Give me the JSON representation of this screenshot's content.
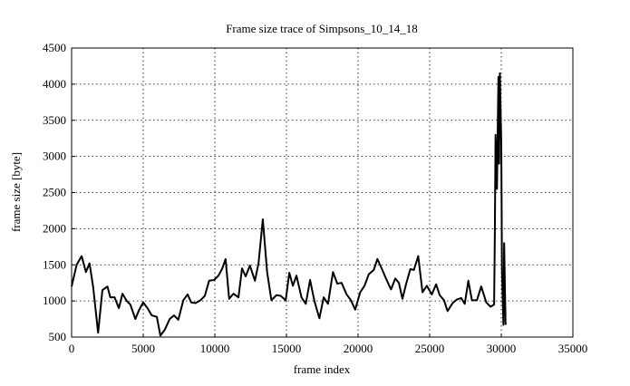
{
  "chart_data": {
    "type": "line",
    "title": "Frame size trace of Simpsons_10_14_18",
    "xlabel": "frame index",
    "ylabel": "frame size [byte]",
    "xlim": [
      0,
      35000
    ],
    "xticks": [
      0,
      5000,
      10000,
      15000,
      20000,
      25000,
      30000,
      35000
    ],
    "ylim": [
      500,
      4500
    ],
    "yticks": [
      500,
      1000,
      1500,
      2000,
      2500,
      3000,
      3500,
      4000,
      4500
    ],
    "grid": true,
    "series": [
      {
        "color": "#000000",
        "x": [
          0,
          350,
          700,
          1000,
          1250,
          1500,
          1850,
          2150,
          2500,
          2700,
          3000,
          3300,
          3550,
          3850,
          4100,
          4450,
          4700,
          5000,
          5300,
          5600,
          5950,
          6200,
          6500,
          6850,
          7150,
          7450,
          7800,
          8100,
          8350,
          8650,
          9000,
          9300,
          9600,
          9950,
          10250,
          10500,
          10750,
          11000,
          11300,
          11650,
          11900,
          12150,
          12450,
          12800,
          13050,
          13350,
          13650,
          13950,
          14300,
          14600,
          14950,
          15200,
          15450,
          15700,
          16050,
          16350,
          16650,
          16950,
          17300,
          17600,
          17900,
          18250,
          18550,
          18850,
          19200,
          19500,
          19800,
          20150,
          20450,
          20750,
          21100,
          21350,
          21650,
          21950,
          22300,
          22600,
          22850,
          23100,
          23350,
          23650,
          23900,
          24200,
          24500,
          24800,
          25150,
          25450,
          25700,
          26000,
          26250,
          26600,
          26900,
          27200,
          27450,
          27700,
          27950,
          28300,
          28600,
          28950,
          29250,
          29500,
          29550,
          29600,
          29700,
          29800,
          29850,
          29900,
          30000,
          30050,
          30150,
          30200,
          30300
        ],
        "values": [
          1200,
          1500,
          1620,
          1400,
          1520,
          1200,
          560,
          1150,
          1200,
          1050,
          1050,
          900,
          1100,
          1000,
          950,
          750,
          870,
          980,
          900,
          800,
          780,
          520,
          600,
          750,
          800,
          740,
          1010,
          1090,
          980,
          970,
          1010,
          1070,
          1280,
          1290,
          1350,
          1440,
          1580,
          1030,
          1100,
          1050,
          1450,
          1340,
          1490,
          1280,
          1520,
          2130,
          1400,
          1010,
          1080,
          1070,
          1010,
          1390,
          1210,
          1350,
          1050,
          960,
          1290,
          1000,
          760,
          1050,
          960,
          1400,
          1240,
          1250,
          1090,
          1010,
          880,
          1120,
          1210,
          1370,
          1430,
          1580,
          1450,
          1310,
          1160,
          1310,
          1250,
          1030,
          1230,
          1440,
          1430,
          1620,
          1120,
          1210,
          1090,
          1230,
          1080,
          1010,
          860,
          970,
          1020,
          1040,
          960,
          1280,
          1010,
          1010,
          1200,
          980,
          920,
          950,
          1920,
          3300,
          2550,
          4100,
          2900,
          4150,
          3200,
          1400,
          670,
          1800,
          670
        ]
      }
    ]
  }
}
